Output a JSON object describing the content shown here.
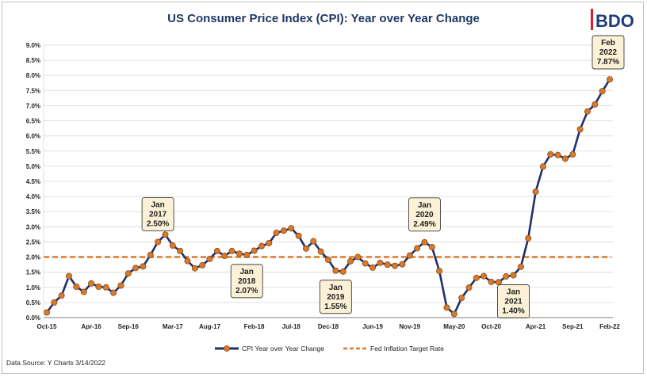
{
  "logo": {
    "text": "BDO",
    "accent_color": "#e31b23",
    "text_color": "#1f3d7a"
  },
  "source_note": "Data Source: Y Charts 3/14/2022",
  "chart_data": {
    "type": "line",
    "title": "US Consumer Price Index (CPI): Year over Year Change",
    "xlabel": "",
    "ylabel": "",
    "ylim": [
      0,
      9
    ],
    "y_ticks": [
      "0.0%",
      "0.5%",
      "1.0%",
      "1.5%",
      "2.0%",
      "2.5%",
      "3.0%",
      "3.5%",
      "4.0%",
      "4.5%",
      "5.0%",
      "5.5%",
      "6.0%",
      "6.5%",
      "7.0%",
      "7.5%",
      "8.0%",
      "8.5%",
      "9.0%"
    ],
    "x_tick_labels": [
      "Oct-15",
      "Apr-16",
      "Sep-16",
      "Mar-17",
      "Aug-17",
      "Feb-18",
      "Jul-18",
      "Dec-18",
      "Jun-19",
      "Nov-19",
      "May-20",
      "Oct-20",
      "Apr-21",
      "Sep-21",
      "Feb-22"
    ],
    "x_tick_indices": [
      0,
      6,
      11,
      17,
      22,
      28,
      33,
      38,
      44,
      49,
      55,
      60,
      66,
      71,
      76
    ],
    "series": [
      {
        "name": "CPI Year over Year Change",
        "color": "#1f2f6b",
        "marker_color": "#d9792a",
        "start": "Oct-15",
        "values": [
          0.17,
          0.5,
          0.73,
          1.37,
          1.02,
          0.85,
          1.13,
          1.02,
          1.0,
          0.82,
          1.06,
          1.46,
          1.64,
          1.69,
          2.07,
          2.5,
          2.74,
          2.38,
          2.2,
          1.87,
          1.63,
          1.73,
          1.94,
          2.2,
          2.04,
          2.2,
          2.11,
          2.07,
          2.21,
          2.36,
          2.46,
          2.8,
          2.87,
          2.95,
          2.7,
          2.28,
          2.52,
          2.18,
          1.91,
          1.55,
          1.52,
          1.86,
          2.0,
          1.79,
          1.65,
          1.81,
          1.75,
          1.71,
          1.76,
          2.05,
          2.29,
          2.49,
          2.33,
          1.54,
          0.33,
          0.12,
          0.65,
          0.99,
          1.31,
          1.37,
          1.18,
          1.17,
          1.36,
          1.4,
          1.68,
          2.62,
          4.16,
          4.99,
          5.39,
          5.37,
          5.25,
          5.39,
          6.22,
          6.81,
          7.04,
          7.48,
          7.87
        ]
      },
      {
        "name": "Fed Inflation Target Rate",
        "color": "#d9792a",
        "dashed": true,
        "value": 2.0
      }
    ],
    "annotations": [
      {
        "index": 15,
        "lines": [
          "Jan",
          "2017",
          "2.50%"
        ],
        "placement": "above"
      },
      {
        "index": 27,
        "lines": [
          "Jan",
          "2018",
          "2.07%"
        ],
        "placement": "below"
      },
      {
        "index": 39,
        "lines": [
          "Jan",
          "2019",
          "1.55%"
        ],
        "placement": "below"
      },
      {
        "index": 51,
        "lines": [
          "Jan",
          "2020",
          "2.49%"
        ],
        "placement": "above"
      },
      {
        "index": 63,
        "lines": [
          "Jan",
          "2021",
          "1.40%"
        ],
        "placement": "below"
      },
      {
        "index": 76,
        "lines": [
          "Feb",
          "2022",
          "7.87%"
        ],
        "placement": "above"
      }
    ],
    "legend": {
      "position": "bottom-center"
    }
  }
}
